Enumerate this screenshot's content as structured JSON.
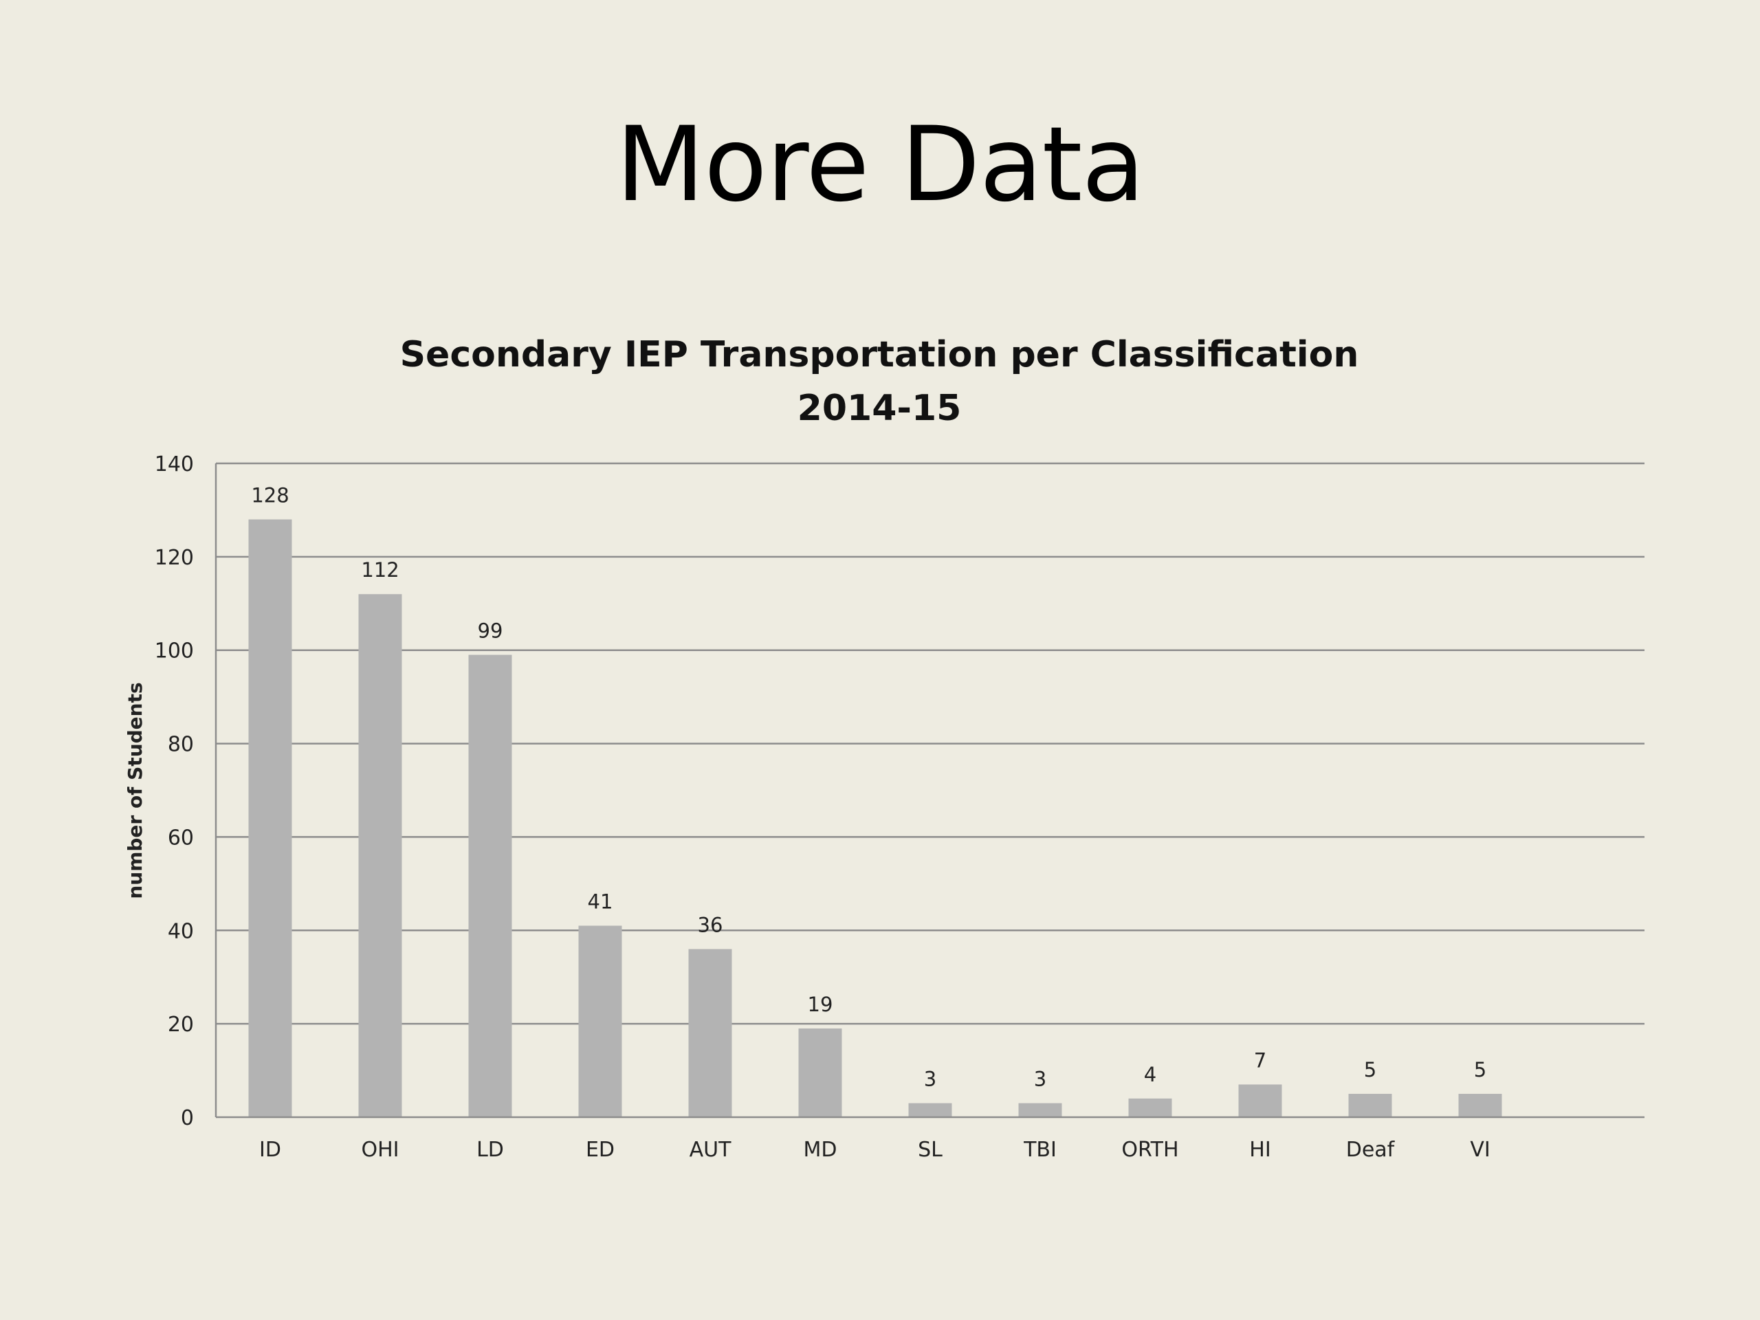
{
  "slide": {
    "title": "More Data"
  },
  "chart_data": {
    "type": "bar",
    "title_line1": "Secondary IEP Transportation per Classification",
    "title_line2": "2014-15",
    "xlabel": "",
    "ylabel": "number of Students",
    "ylim": [
      0,
      140
    ],
    "yticks": [
      0,
      20,
      40,
      60,
      80,
      100,
      120,
      140
    ],
    "grid": true,
    "legend": "none",
    "categories": [
      "ID",
      "OHI",
      "LD",
      "ED",
      "AUT",
      "MD",
      "SL",
      "TBI",
      "ORTH",
      "HI",
      "Deaf",
      "VI"
    ],
    "values": [
      128,
      112,
      99,
      41,
      36,
      19,
      3,
      3,
      4,
      7,
      5,
      5
    ],
    "data_labels": true,
    "colors": {
      "bar": "#b3b3b3",
      "gridline": "#8c8c8c",
      "background": "#eeece1"
    }
  }
}
